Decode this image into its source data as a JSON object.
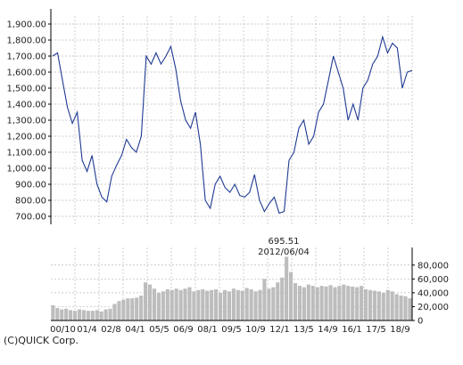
{
  "copyright": "(C)QUICK Corp.",
  "colors": {
    "price_line": "#1f3a93",
    "volume_bar": "#bdbdbd",
    "grid": "#bbbbbb",
    "axis": "#000000"
  },
  "chart_data": [
    {
      "type": "line",
      "name": "price",
      "x": [
        "2000/10",
        "2001/01",
        "2001/04",
        "2001/07",
        "2001/10",
        "2002/01",
        "2002/04",
        "2002/08",
        "2002/10",
        "2003/01",
        "2003/04",
        "2003/07",
        "2003/10",
        "2004/01",
        "2004/04",
        "2004/07",
        "2004/10",
        "2005/01",
        "2005/05",
        "2005/08",
        "2005/11",
        "2006/02",
        "2006/05",
        "2006/09",
        "2006/12",
        "2007/03",
        "2007/06",
        "2007/09",
        "2007/12",
        "2008/01",
        "2008/04",
        "2008/07",
        "2008/10",
        "2009/01",
        "2009/05",
        "2009/08",
        "2009/11",
        "2010/02",
        "2010/05",
        "2010/09",
        "2010/12",
        "2011/03",
        "2011/06",
        "2011/09",
        "2011/12",
        "2012/01",
        "2012/03",
        "2012/06",
        "2012/09",
        "2012/12",
        "2013/03",
        "2013/05",
        "2013/08",
        "2013/11",
        "2014/02",
        "2014/05",
        "2014/09",
        "2014/12",
        "2015/03",
        "2015/06",
        "2015/09",
        "2015/12",
        "2016/01",
        "2016/04",
        "2016/07",
        "2016/10",
        "2017/01",
        "2017/05",
        "2017/08",
        "2017/11",
        "2018/02",
        "2018/05",
        "2018/09",
        "2018/12"
      ],
      "y": [
        1700,
        1720,
        1550,
        1380,
        1280,
        1350,
        1050,
        980,
        1080,
        900,
        820,
        790,
        950,
        1020,
        1080,
        1180,
        1130,
        1100,
        1200,
        1700,
        1650,
        1720,
        1650,
        1700,
        1760,
        1620,
        1420,
        1300,
        1250,
        1350,
        1150,
        800,
        750,
        900,
        950,
        880,
        850,
        900,
        830,
        820,
        850,
        960,
        800,
        730,
        780,
        820,
        720,
        730,
        1050,
        1100,
        1250,
        1300,
        1150,
        1200,
        1350,
        1400,
        1550,
        1700,
        1600,
        1500,
        1300,
        1400,
        1300,
        1500,
        1550,
        1650,
        1700,
        1820,
        1720,
        1780,
        1750,
        1500,
        1600,
        1610
      ],
      "ylim": [
        650,
        1950
      ],
      "y_ticks": [
        "1,900.00",
        "1,800.00",
        "1,700.00",
        "1,600.00",
        "1,500.00",
        "1,400.00",
        "1,300.00",
        "1,200.00",
        "1,100.00",
        "1,000.00",
        "900.00",
        "800.00",
        "700.00"
      ],
      "y_tick_values": [
        1900,
        1800,
        1700,
        1600,
        1500,
        1400,
        1300,
        1200,
        1100,
        1000,
        900,
        800,
        700
      ],
      "grid": true
    },
    {
      "type": "bar",
      "name": "volume",
      "x_ticks": [
        "00/10",
        "01/4",
        "02/8",
        "04/1",
        "05/5",
        "06/9",
        "08/1",
        "09/5",
        "10/9",
        "12/1",
        "13/5",
        "14/9",
        "16/1",
        "17/5",
        "18/9"
      ],
      "values": [
        22000,
        18000,
        16000,
        17000,
        15000,
        14000,
        16000,
        15000,
        14000,
        14000,
        15000,
        13000,
        16000,
        17000,
        24000,
        28000,
        30000,
        32000,
        32000,
        33000,
        36000,
        55000,
        52000,
        46000,
        40000,
        42000,
        45000,
        44000,
        46000,
        44000,
        46000,
        48000,
        42000,
        44000,
        45000,
        43000,
        44000,
        45000,
        40000,
        44000,
        42000,
        46000,
        44000,
        43000,
        47000,
        45000,
        42000,
        44000,
        60000,
        46000,
        48000,
        55000,
        62000,
        92000,
        70000,
        54000,
        50000,
        48000,
        52000,
        50000,
        48000,
        50000,
        49000,
        51000,
        48000,
        50000,
        52000,
        50000,
        49000,
        48000,
        50000,
        45000,
        44000,
        43000,
        42000,
        40000,
        44000,
        42000,
        38000,
        36000,
        35000,
        32000
      ],
      "ylim": [
        0,
        90000
      ],
      "y_ticks": [
        "80,000",
        "60,000",
        "40,000",
        "20,000",
        "0"
      ],
      "y_tick_values": [
        80000,
        60000,
        40000,
        20000,
        0
      ],
      "annotation": {
        "value": "695.51",
        "date": "2012/06/04"
      }
    }
  ]
}
